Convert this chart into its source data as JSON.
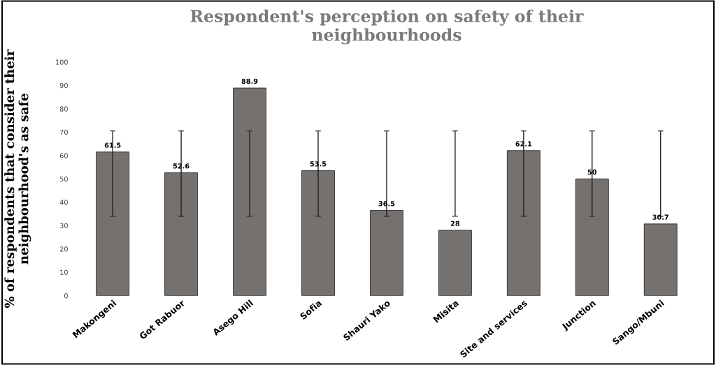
{
  "chart_data": {
    "type": "bar",
    "title": "Respondent's perception on safety of their\nneighbourhoods",
    "ylabel": "% of respondents that consider their\nneighbourhood's as safe",
    "categories": [
      "Makongeni",
      "Got Rabuor",
      "Asego Hill",
      "Sofia",
      "Shauri Yako",
      "Misita",
      "Site and services",
      "Junction",
      "Sango/Mbuni"
    ],
    "values": [
      61.5,
      52.6,
      88.9,
      53.5,
      36.5,
      28,
      62.1,
      50,
      30.7
    ],
    "errors": [
      [
        34,
        70.5
      ],
      [
        34,
        70.5
      ],
      [
        34,
        70.5
      ],
      [
        34,
        70.5
      ],
      [
        34,
        70.5
      ],
      [
        34,
        70.5
      ],
      [
        34,
        70.5
      ],
      [
        34,
        70.5
      ],
      [
        34,
        70.5
      ]
    ],
    "color": "#75716f",
    "data_labels": true,
    "ylim": [
      0,
      100
    ],
    "yticks": [
      0,
      10,
      20,
      30,
      40,
      50,
      60,
      70,
      80,
      90,
      100
    ],
    "grid": false,
    "legend": false
  }
}
